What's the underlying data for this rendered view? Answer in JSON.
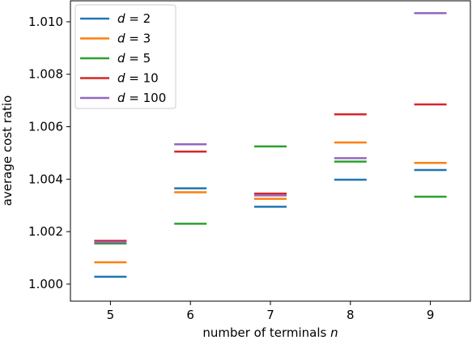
{
  "chart_data": {
    "type": "scatter",
    "xlabel": "number of terminals",
    "xlabel_var": "n",
    "ylabel": "average cost ratio",
    "x_ticks": [
      5,
      6,
      7,
      8,
      9
    ],
    "y_ticks": [
      "1.000",
      "1.002",
      "1.004",
      "1.006",
      "1.008",
      "1.010"
    ],
    "xlim": [
      4.5,
      9.5
    ],
    "ylim": [
      0.99935,
      1.0108
    ],
    "marker": "horizontal-line",
    "legend_position": "top-left",
    "grid": false,
    "series": [
      {
        "name": "d = 2",
        "var": "d",
        "value": "2",
        "color": "#1f77b4",
        "x": [
          5,
          6,
          7,
          8,
          9
        ],
        "values": [
          1.00028,
          1.00365,
          1.00295,
          1.00398,
          1.00435
        ]
      },
      {
        "name": "d = 3",
        "var": "d",
        "value": "3",
        "color": "#ff7f0e",
        "x": [
          5,
          6,
          7,
          8,
          9
        ],
        "values": [
          1.00083,
          1.0035,
          1.00325,
          1.0054,
          1.00462
        ]
      },
      {
        "name": "d = 5",
        "var": "d",
        "value": "5",
        "color": "#2ca02c",
        "x": [
          5,
          6,
          7,
          8,
          9
        ],
        "values": [
          1.00155,
          1.0023,
          1.00525,
          1.00467,
          1.00333
        ]
      },
      {
        "name": "d = 10",
        "var": "d",
        "value": "10",
        "color": "#d62728",
        "x": [
          5,
          6,
          7,
          8,
          9
        ],
        "values": [
          1.00165,
          1.00505,
          1.00345,
          1.00647,
          1.00685
        ]
      },
      {
        "name": "d = 100",
        "var": "d",
        "value": "100",
        "color": "#9467bd",
        "x": [
          5,
          6,
          7,
          8,
          9
        ],
        "values": [
          1.0016,
          1.00533,
          1.00338,
          1.0048,
          1.01033
        ]
      }
    ]
  }
}
